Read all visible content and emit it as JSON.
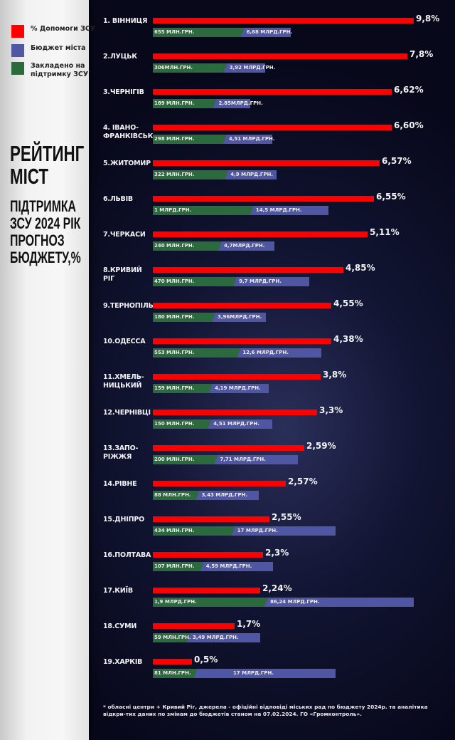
{
  "legend": [
    {
      "label": "% Допомоги ЗСУ",
      "color": "#ff0000"
    },
    {
      "label": "Бюджет міста",
      "color": "#4f56a3"
    },
    {
      "label": "Закладено на підтримку ЗСУ",
      "color": "#2b6a3c"
    }
  ],
  "title": "РЕЙТИНГ МІСТ",
  "subtitle": "ПІДТРИМКА ЗСУ 2024 РІК ПРОГНОЗ БЮДЖЕТУ,%",
  "chart_data": {
    "type": "bar",
    "title": "РЕЙТИНГ МІСТ",
    "subtitle": "ПІДТРИМКА ЗСУ 2024 РІК ПРОГНОЗ БЮДЖЕТУ,%",
    "legend_position": "left",
    "grid": false,
    "rows": [
      {
        "city": "1. ВІННИЦЯ",
        "pct": 9.8,
        "pct_label": "9,8%",
        "support_mln": 655,
        "support_label": "655 МЛН.ГРН.",
        "budget_bln": 6.68,
        "budget_label": "6,68 МЛРД.ГРН."
      },
      {
        "city": "2.ЛУЦЬК",
        "pct": 7.8,
        "pct_label": "7,8%",
        "support_mln": 306,
        "support_label": "306МЛН.ГРН.",
        "budget_bln": 3.92,
        "budget_label": "3,92 МЛРД.ГРН."
      },
      {
        "city": "3.ЧЕРНІГІВ",
        "pct": 6.62,
        "pct_label": "6,62%",
        "support_mln": 189,
        "support_label": "189 МЛН.ГРН.",
        "budget_bln": 2.85,
        "budget_label": "2,85МЛРД.ГРН."
      },
      {
        "city": "4. ІВАНО-ФРАНКІВСЬК",
        "pct": 6.6,
        "pct_label": "6,60%",
        "support_mln": 298,
        "support_label": "298 МЛН.ГРН.",
        "budget_bln": 4.51,
        "budget_label": "4,51 МЛРД.ГРН."
      },
      {
        "city": "5.ЖИТОМИР",
        "pct": 6.57,
        "pct_label": "6,57%",
        "support_mln": 322,
        "support_label": "322 МЛН.ГРН.",
        "budget_bln": 4.9,
        "budget_label": "4,9 МЛРД.ГРН."
      },
      {
        "city": "6.ЛЬВІВ",
        "pct": 6.55,
        "pct_label": "6,55%",
        "support_mln": 1000,
        "support_label": "1 МЛРД.ГРН.",
        "budget_bln": 14.5,
        "budget_label": "14,5 МЛРД.ГРН."
      },
      {
        "city": "7.ЧЕРКАСИ",
        "pct": 5.11,
        "pct_label": "5,11%",
        "support_mln": 240,
        "support_label": "240 МЛН.ГРН.",
        "budget_bln": 4.7,
        "budget_label": "4,7МЛРД.ГРН."
      },
      {
        "city": "8.КРИВИЙ РІГ",
        "pct": 4.85,
        "pct_label": "4,85%",
        "support_mln": 470,
        "support_label": "470 МЛН.ГРН.",
        "budget_bln": 9.7,
        "budget_label": "9,7 МЛРД.ГРН."
      },
      {
        "city": "9.ТЕРНОПІЛЬ",
        "pct": 4.55,
        "pct_label": "4,55%",
        "support_mln": 180,
        "support_label": "180 МЛН.ГРН.",
        "budget_bln": 3.96,
        "budget_label": "3,96МЛРД.ГРН."
      },
      {
        "city": "10.ОДЕССА",
        "pct": 4.38,
        "pct_label": "4,38%",
        "support_mln": 553,
        "support_label": "553 МЛН.ГРН.",
        "budget_bln": 12.6,
        "budget_label": "12,6 МЛРД.ГРН."
      },
      {
        "city": "11.ХМЕЛЬ-НИЦЬКИЙ",
        "pct": 3.8,
        "pct_label": "3,8%",
        "support_mln": 159,
        "support_label": "159 МЛН.ГРН.",
        "budget_bln": 4.19,
        "budget_label": "4,19 МЛРД.ГРН."
      },
      {
        "city": "12.ЧЕРНІВЦІ",
        "pct": 3.3,
        "pct_label": "3,3%",
        "support_mln": 150,
        "support_label": "150 МЛН.ГРН.",
        "budget_bln": 4.51,
        "budget_label": "4,51 МЛРД.ГРН."
      },
      {
        "city": "13.ЗАПО-РІЖЖЯ",
        "pct": 2.59,
        "pct_label": "2,59%",
        "support_mln": 200,
        "support_label": "200 МЛН.ГРН.",
        "budget_bln": 7.71,
        "budget_label": "7,71 МЛРД.ГРН."
      },
      {
        "city": "14.РІВНЕ",
        "pct": 2.57,
        "pct_label": "2,57%",
        "support_mln": 88,
        "support_label": "88 МЛН.ГРН.",
        "budget_bln": 3.43,
        "budget_label": "3,43 МЛРД.ГРН."
      },
      {
        "city": "15.ДНІПРО",
        "pct": 2.55,
        "pct_label": "2,55%",
        "support_mln": 434,
        "support_label": "434 МЛН.ГРН.",
        "budget_bln": 17,
        "budget_label": "17 МЛРД.ГРН."
      },
      {
        "city": "16.ПОЛТАВА",
        "pct": 2.3,
        "pct_label": "2,3%",
        "support_mln": 107,
        "support_label": "107 МЛН.ГРН.",
        "budget_bln": 4.59,
        "budget_label": "4,59 МЛРД.ГРН."
      },
      {
        "city": "17.КИЇВ",
        "pct": 2.24,
        "pct_label": "2,24%",
        "support_mln": 1900,
        "support_label": "1,9 МЛРД.ГРН.",
        "budget_bln": 86.24,
        "budget_label": "86,24 МЛРД.ГРН."
      },
      {
        "city": "18.СУМИ",
        "pct": 1.7,
        "pct_label": "1,7%",
        "support_mln": 59,
        "support_label": "59 МЛН.ГРН.",
        "budget_bln": 3.49,
        "budget_label": "3,49 МЛРД.ГРН."
      },
      {
        "city": "19.ХАРКІВ",
        "pct": 0.5,
        "pct_label": "0,5%",
        "support_mln": 81,
        "support_label": "81 МЛН.ГРН.",
        "budget_bln": 17,
        "budget_label": "17 МЛРД.ГРН."
      }
    ]
  },
  "footnote": "* обласні центри + Кривий Ріг, джерела - офіційні відповіді міських рад по бюджету 2024р. та аналітика відкри-тих даних по змінам до бюджетів станом на 07.02.2024. ГО «Громконтроль»."
}
